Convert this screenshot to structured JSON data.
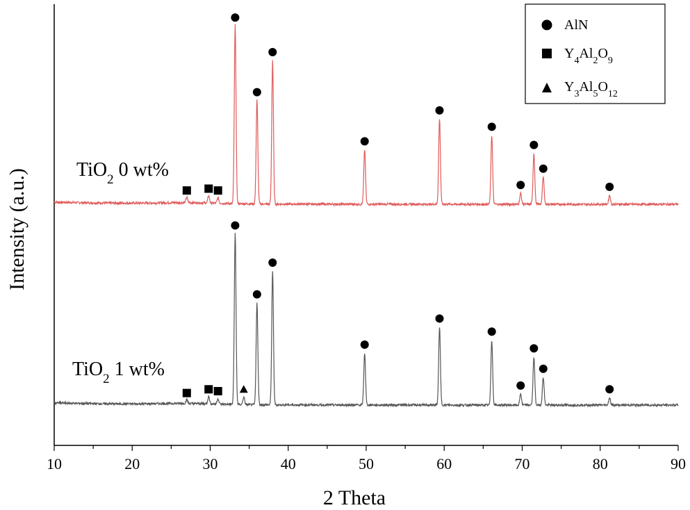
{
  "chart_data": {
    "type": "line",
    "xlabel": "2 Theta",
    "ylabel": "Intensity (a.u.)",
    "xlim": [
      10,
      90
    ],
    "x_ticks": [
      10,
      20,
      30,
      40,
      50,
      60,
      70,
      80,
      90
    ],
    "grid": false,
    "legend_position": "top-right",
    "legend": [
      {
        "marker": "circle",
        "label": "AlN"
      },
      {
        "marker": "square",
        "label_parts": [
          "Y",
          "4",
          "Al",
          "2",
          "O",
          "9"
        ]
      },
      {
        "marker": "triangle",
        "label_parts": [
          "Y",
          "3",
          "Al",
          "5",
          "O",
          "12"
        ]
      }
    ],
    "series": [
      {
        "label_parts": [
          "TiO",
          "2",
          " 0 wt%"
        ],
        "color": "#e05a5a",
        "peaks": [
          {
            "x": 27.0,
            "h": 0.03,
            "phase": "Y4Al2O9"
          },
          {
            "x": 29.8,
            "h": 0.04,
            "phase": "Y4Al2O9"
          },
          {
            "x": 31.0,
            "h": 0.03,
            "phase": "Y4Al2O9"
          },
          {
            "x": 33.2,
            "h": 0.98,
            "phase": "AlN"
          },
          {
            "x": 36.0,
            "h": 0.57,
            "phase": "AlN"
          },
          {
            "x": 38.0,
            "h": 0.79,
            "phase": "AlN"
          },
          {
            "x": 49.8,
            "h": 0.3,
            "phase": "AlN"
          },
          {
            "x": 59.4,
            "h": 0.47,
            "phase": "AlN"
          },
          {
            "x": 66.1,
            "h": 0.38,
            "phase": "AlN"
          },
          {
            "x": 69.8,
            "h": 0.06,
            "phase": "AlN"
          },
          {
            "x": 71.5,
            "h": 0.28,
            "phase": "AlN"
          },
          {
            "x": 72.7,
            "h": 0.15,
            "phase": "AlN"
          },
          {
            "x": 81.2,
            "h": 0.05,
            "phase": "AlN"
          }
        ]
      },
      {
        "label_parts": [
          "TiO",
          "2",
          " 1 wt%"
        ],
        "color": "#555555",
        "peaks": [
          {
            "x": 27.0,
            "h": 0.02,
            "phase": "Y4Al2O9"
          },
          {
            "x": 29.8,
            "h": 0.04,
            "phase": "Y4Al2O9"
          },
          {
            "x": 31.0,
            "h": 0.03,
            "phase": "Y4Al2O9"
          },
          {
            "x": 34.3,
            "h": 0.04,
            "phase": "Y3Al5O12"
          },
          {
            "x": 33.2,
            "h": 0.92,
            "phase": "AlN"
          },
          {
            "x": 36.0,
            "h": 0.55,
            "phase": "AlN"
          },
          {
            "x": 38.0,
            "h": 0.72,
            "phase": "AlN"
          },
          {
            "x": 49.8,
            "h": 0.28,
            "phase": "AlN"
          },
          {
            "x": 59.4,
            "h": 0.42,
            "phase": "AlN"
          },
          {
            "x": 66.1,
            "h": 0.35,
            "phase": "AlN"
          },
          {
            "x": 69.8,
            "h": 0.06,
            "phase": "AlN"
          },
          {
            "x": 71.5,
            "h": 0.26,
            "phase": "AlN"
          },
          {
            "x": 72.7,
            "h": 0.15,
            "phase": "AlN"
          },
          {
            "x": 81.2,
            "h": 0.04,
            "phase": "AlN"
          }
        ]
      }
    ]
  }
}
